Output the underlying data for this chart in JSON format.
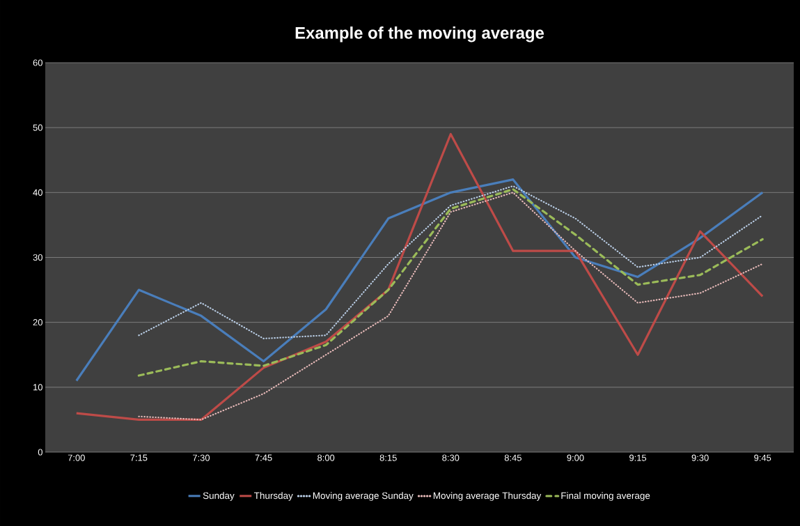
{
  "chart_data": {
    "type": "line",
    "title": "Example of the moving average",
    "categories": [
      "7:00",
      "7:15",
      "7:30",
      "7:45",
      "8:00",
      "8:15",
      "8:30",
      "8:45",
      "9:00",
      "9:15",
      "9:30",
      "9:45"
    ],
    "series": [
      {
        "name": "Sunday",
        "color": "#4a7ebb",
        "line_style": "solid",
        "values": [
          11,
          25,
          21,
          14,
          22,
          36,
          40,
          42,
          30,
          27,
          33,
          40
        ]
      },
      {
        "name": "Thursday",
        "color": "#be4b48",
        "line_style": "solid",
        "values": [
          6,
          5,
          5,
          13,
          17,
          25,
          49,
          31,
          31,
          15,
          34,
          24
        ]
      },
      {
        "name": "Moving average Sunday",
        "color": "#b9cde5",
        "line_style": "dotted",
        "values": [
          null,
          18,
          23,
          17.5,
          18,
          29,
          38,
          41,
          36,
          28.5,
          30,
          36.5
        ]
      },
      {
        "name": "Moving average Thursday",
        "color": "#e6b9b8",
        "line_style": "dotted",
        "values": [
          null,
          5.5,
          5,
          9,
          15,
          21,
          37,
          40,
          31,
          23,
          24.5,
          29
        ]
      },
      {
        "name": "Final moving average",
        "color": "#9bbb59",
        "line_style": "dashed",
        "values": [
          null,
          11.8,
          14,
          13.3,
          16.5,
          25,
          37.5,
          40.5,
          33.5,
          25.8,
          27.3,
          32.8
        ]
      }
    ],
    "ylim": [
      0,
      60
    ],
    "yticks": [
      0,
      10,
      20,
      30,
      40,
      50,
      60
    ],
    "grid": "y",
    "legend": "bottom",
    "marker": "none"
  }
}
